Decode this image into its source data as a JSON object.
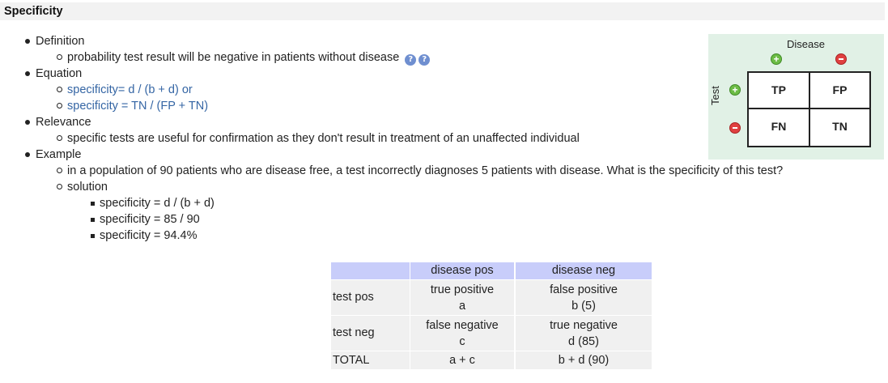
{
  "section": {
    "title": "Specificity"
  },
  "content": {
    "definition_label": "Definition",
    "definition_text": "probability test result will be negative in patients without disease",
    "equation_label": "Equation",
    "equation_1": "specificity= d / (b + d) or",
    "equation_2": "specificity =  TN / (FP + TN)",
    "relevance_label": "Relevance",
    "relevance_text": "specific tests are useful for confirmation as they don't result in treatment of an unaffected individual",
    "example_label": "Example",
    "example_text": "in a population of 90 patients who are disease free, a test incorrectly diagnoses 5 patients with disease.  What is the specificity of this test?",
    "solution_label": "solution",
    "solution_steps": [
      "specificity = d / (b + d)",
      "specificity = 85 / 90",
      "specificity = 94.4%"
    ],
    "help_icons": [
      "?",
      "?"
    ]
  },
  "figure": {
    "disease_label": "Disease",
    "test_label": "Test",
    "cells": [
      "TP",
      "FP",
      "FN",
      "TN"
    ]
  },
  "table": {
    "col_headers": [
      "",
      "disease pos",
      "disease neg"
    ],
    "rows": [
      {
        "label": "test pos",
        "c1": [
          "true positive",
          "a"
        ],
        "c2": [
          "false positive",
          "b (5)"
        ]
      },
      {
        "label": "test neg",
        "c1": [
          "false negative",
          "c"
        ],
        "c2": [
          "true negative",
          "d (85)"
        ]
      },
      {
        "label": "TOTAL",
        "c1": [
          "a + c"
        ],
        "c2": [
          "b + d (90)"
        ]
      }
    ]
  },
  "colors": {
    "link": "#3465a4",
    "header_bg": "#c8cdfa",
    "figure_bg": "#e1f1e6"
  }
}
